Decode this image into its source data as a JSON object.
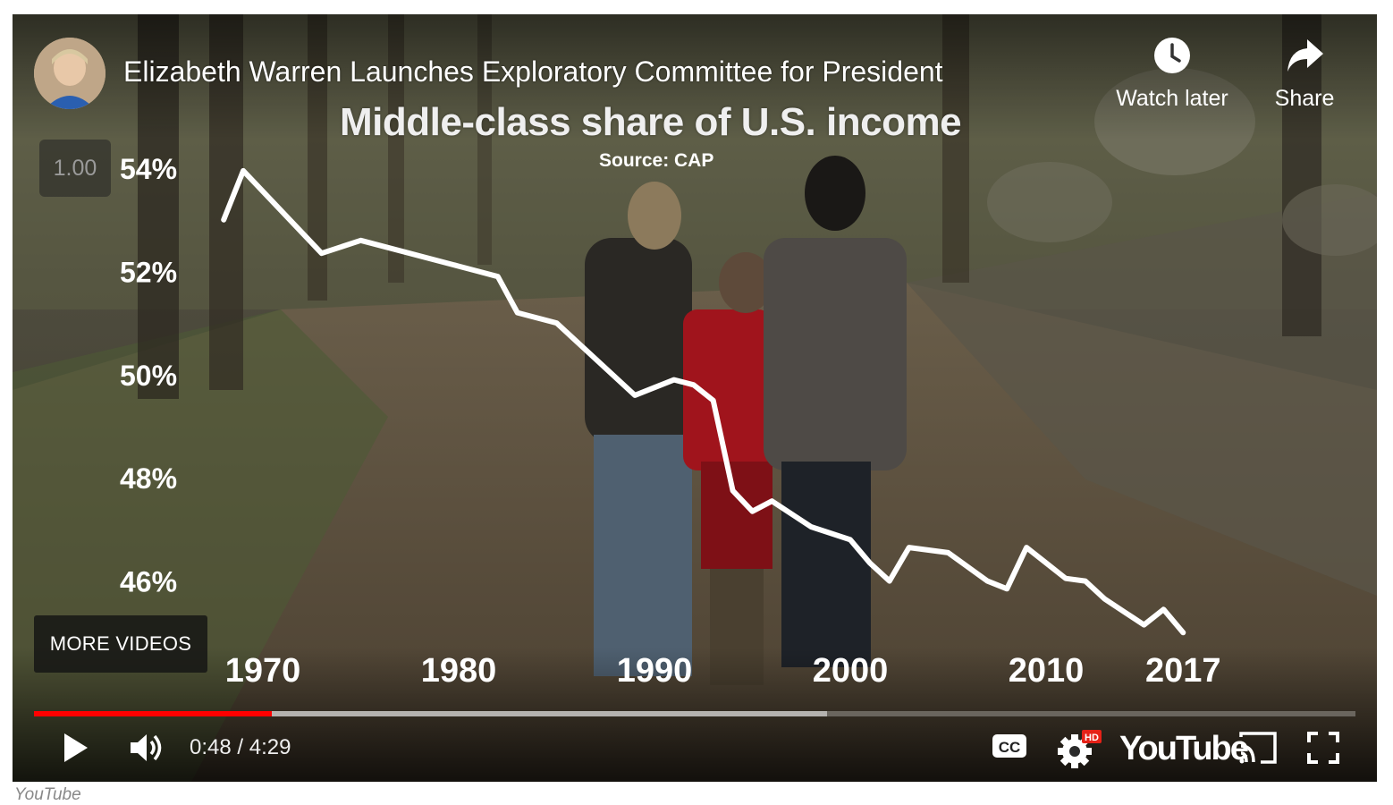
{
  "video": {
    "title": "Elizabeth Warren Launches Exploratory Committee for President",
    "playback_speed": "1.00",
    "more_videos_label": "MORE VIDEOS",
    "watch_later_label": "Watch later",
    "share_label": "Share"
  },
  "controls": {
    "current_time": "0:48",
    "separator": " / ",
    "duration": "4:29",
    "progress_played_fraction": 0.18,
    "progress_buffered_fraction": 0.6,
    "played_color": "#ff0000",
    "brand_label": "YouTube",
    "hd_badge": "HD",
    "cc_label": "CC"
  },
  "chart_data": {
    "type": "line",
    "title": "Middle-class share of U.S. income",
    "subtitle": "Source: CAP",
    "xlabel": "",
    "ylabel": "",
    "x_ticks": [
      1970,
      1980,
      1990,
      2000,
      2010,
      2017
    ],
    "y_ticks": [
      54,
      52,
      50,
      48,
      46
    ],
    "y_tick_suffix": "%",
    "ylim": [
      45,
      55
    ],
    "grid": false,
    "series": [
      {
        "x": [
          1968,
          1969,
          1973,
          1975,
          1980,
          1981,
          1982,
          1983,
          1985,
          1989,
          1991,
          1992,
          1993,
          1994,
          1995,
          1996,
          1997,
          1998,
          2000,
          2001,
          2002,
          2003,
          2005,
          2007,
          2008,
          2009,
          2010,
          2011,
          2012,
          2013,
          2014,
          2015,
          2016,
          2017
        ],
        "y": [
          53.0,
          53.95,
          52.35,
          52.6,
          52.1,
          52.0,
          51.9,
          51.2,
          51.0,
          49.6,
          49.9,
          49.8,
          49.5,
          47.75,
          47.35,
          47.55,
          47.3,
          47.05,
          46.8,
          46.35,
          46.0,
          46.65,
          46.55,
          46.0,
          45.85,
          46.65,
          46.35,
          46.05,
          46.0,
          45.65,
          45.4,
          45.15,
          45.45,
          45.0
        ]
      }
    ]
  },
  "caption": "YouTube"
}
